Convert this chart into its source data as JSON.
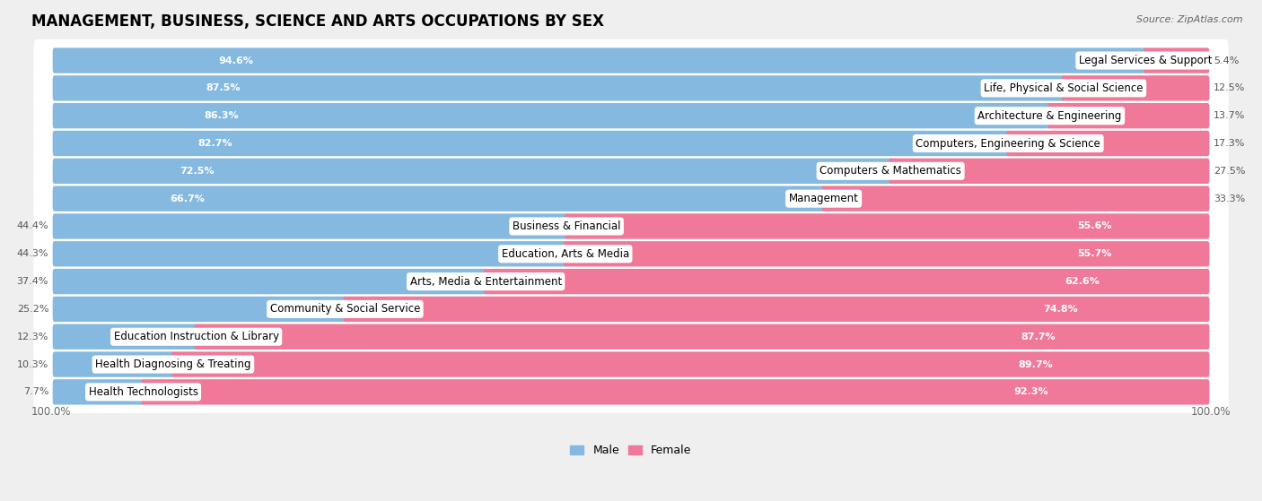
{
  "title": "MANAGEMENT, BUSINESS, SCIENCE AND ARTS OCCUPATIONS BY SEX",
  "source": "Source: ZipAtlas.com",
  "categories": [
    "Legal Services & Support",
    "Life, Physical & Social Science",
    "Architecture & Engineering",
    "Computers, Engineering & Science",
    "Computers & Mathematics",
    "Management",
    "Business & Financial",
    "Education, Arts & Media",
    "Arts, Media & Entertainment",
    "Community & Social Service",
    "Education Instruction & Library",
    "Health Diagnosing & Treating",
    "Health Technologists"
  ],
  "male_pct": [
    94.6,
    87.5,
    86.3,
    82.7,
    72.5,
    66.7,
    44.4,
    44.3,
    37.4,
    25.2,
    12.3,
    10.3,
    7.7
  ],
  "female_pct": [
    5.4,
    12.5,
    13.7,
    17.3,
    27.5,
    33.3,
    55.6,
    55.7,
    62.6,
    74.8,
    87.7,
    89.7,
    92.3
  ],
  "male_color": "#85b9e0",
  "female_color": "#f07898",
  "bg_color": "#efefef",
  "row_bg": "#ffffff",
  "title_fontsize": 12,
  "label_fontsize": 8.5,
  "pct_fontsize": 8,
  "source_fontsize": 8
}
